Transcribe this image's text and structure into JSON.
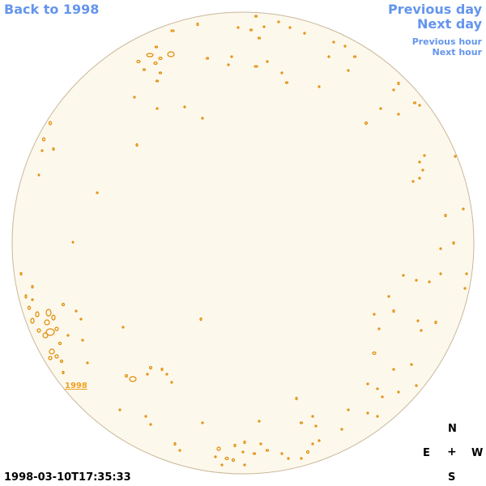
{
  "nav": {
    "back_label": "Back to 1998",
    "prev_day_label": "Previous day",
    "next_day_label": "Next day",
    "prev_hour_label": "Previous hour",
    "next_hour_label": "Next hour"
  },
  "disk": {
    "fill_color": "#fdf8ec",
    "limb_color": "#c8b89a",
    "contour_color": "#e08a00"
  },
  "region": {
    "label": "1998"
  },
  "compass": {
    "north": "N",
    "south": "S",
    "east": "E",
    "west": "W",
    "center": "+"
  },
  "timestamp": "1998-03-10T17:35:33"
}
